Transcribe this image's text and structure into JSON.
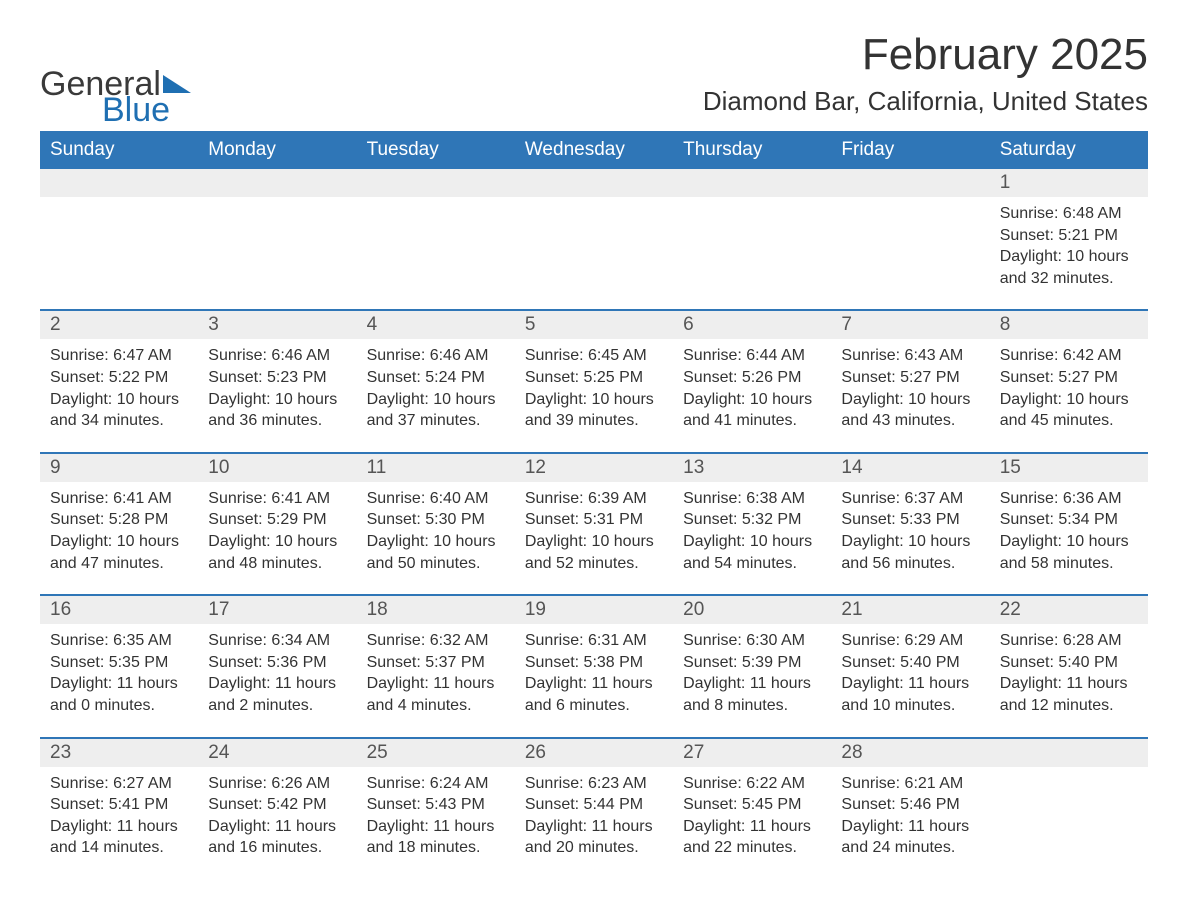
{
  "brand": {
    "word1": "General",
    "word2": "Blue",
    "accent_color": "#1f6fb2"
  },
  "title": "February 2025",
  "location": "Diamond Bar, California, United States",
  "colors": {
    "header_bg": "#2f76b7",
    "header_text": "#ffffff",
    "row_sep": "#2f76b7",
    "daynum_bg": "#eeeeee",
    "body_text": "#333333",
    "page_bg": "#ffffff"
  },
  "typography": {
    "month_title_pt": 44,
    "location_pt": 26,
    "dow_pt": 19,
    "daynum_pt": 19,
    "detail_pt": 16
  },
  "days_of_week": [
    "Sunday",
    "Monday",
    "Tuesday",
    "Wednesday",
    "Thursday",
    "Friday",
    "Saturday"
  ],
  "weeks": [
    [
      null,
      null,
      null,
      null,
      null,
      null,
      {
        "n": "1",
        "sunrise": "Sunrise: 6:48 AM",
        "sunset": "Sunset: 5:21 PM",
        "daylight": "Daylight: 10 hours and 32 minutes."
      }
    ],
    [
      {
        "n": "2",
        "sunrise": "Sunrise: 6:47 AM",
        "sunset": "Sunset: 5:22 PM",
        "daylight": "Daylight: 10 hours and 34 minutes."
      },
      {
        "n": "3",
        "sunrise": "Sunrise: 6:46 AM",
        "sunset": "Sunset: 5:23 PM",
        "daylight": "Daylight: 10 hours and 36 minutes."
      },
      {
        "n": "4",
        "sunrise": "Sunrise: 6:46 AM",
        "sunset": "Sunset: 5:24 PM",
        "daylight": "Daylight: 10 hours and 37 minutes."
      },
      {
        "n": "5",
        "sunrise": "Sunrise: 6:45 AM",
        "sunset": "Sunset: 5:25 PM",
        "daylight": "Daylight: 10 hours and 39 minutes."
      },
      {
        "n": "6",
        "sunrise": "Sunrise: 6:44 AM",
        "sunset": "Sunset: 5:26 PM",
        "daylight": "Daylight: 10 hours and 41 minutes."
      },
      {
        "n": "7",
        "sunrise": "Sunrise: 6:43 AM",
        "sunset": "Sunset: 5:27 PM",
        "daylight": "Daylight: 10 hours and 43 minutes."
      },
      {
        "n": "8",
        "sunrise": "Sunrise: 6:42 AM",
        "sunset": "Sunset: 5:27 PM",
        "daylight": "Daylight: 10 hours and 45 minutes."
      }
    ],
    [
      {
        "n": "9",
        "sunrise": "Sunrise: 6:41 AM",
        "sunset": "Sunset: 5:28 PM",
        "daylight": "Daylight: 10 hours and 47 minutes."
      },
      {
        "n": "10",
        "sunrise": "Sunrise: 6:41 AM",
        "sunset": "Sunset: 5:29 PM",
        "daylight": "Daylight: 10 hours and 48 minutes."
      },
      {
        "n": "11",
        "sunrise": "Sunrise: 6:40 AM",
        "sunset": "Sunset: 5:30 PM",
        "daylight": "Daylight: 10 hours and 50 minutes."
      },
      {
        "n": "12",
        "sunrise": "Sunrise: 6:39 AM",
        "sunset": "Sunset: 5:31 PM",
        "daylight": "Daylight: 10 hours and 52 minutes."
      },
      {
        "n": "13",
        "sunrise": "Sunrise: 6:38 AM",
        "sunset": "Sunset: 5:32 PM",
        "daylight": "Daylight: 10 hours and 54 minutes."
      },
      {
        "n": "14",
        "sunrise": "Sunrise: 6:37 AM",
        "sunset": "Sunset: 5:33 PM",
        "daylight": "Daylight: 10 hours and 56 minutes."
      },
      {
        "n": "15",
        "sunrise": "Sunrise: 6:36 AM",
        "sunset": "Sunset: 5:34 PM",
        "daylight": "Daylight: 10 hours and 58 minutes."
      }
    ],
    [
      {
        "n": "16",
        "sunrise": "Sunrise: 6:35 AM",
        "sunset": "Sunset: 5:35 PM",
        "daylight": "Daylight: 11 hours and 0 minutes."
      },
      {
        "n": "17",
        "sunrise": "Sunrise: 6:34 AM",
        "sunset": "Sunset: 5:36 PM",
        "daylight": "Daylight: 11 hours and 2 minutes."
      },
      {
        "n": "18",
        "sunrise": "Sunrise: 6:32 AM",
        "sunset": "Sunset: 5:37 PM",
        "daylight": "Daylight: 11 hours and 4 minutes."
      },
      {
        "n": "19",
        "sunrise": "Sunrise: 6:31 AM",
        "sunset": "Sunset: 5:38 PM",
        "daylight": "Daylight: 11 hours and 6 minutes."
      },
      {
        "n": "20",
        "sunrise": "Sunrise: 6:30 AM",
        "sunset": "Sunset: 5:39 PM",
        "daylight": "Daylight: 11 hours and 8 minutes."
      },
      {
        "n": "21",
        "sunrise": "Sunrise: 6:29 AM",
        "sunset": "Sunset: 5:40 PM",
        "daylight": "Daylight: 11 hours and 10 minutes."
      },
      {
        "n": "22",
        "sunrise": "Sunrise: 6:28 AM",
        "sunset": "Sunset: 5:40 PM",
        "daylight": "Daylight: 11 hours and 12 minutes."
      }
    ],
    [
      {
        "n": "23",
        "sunrise": "Sunrise: 6:27 AM",
        "sunset": "Sunset: 5:41 PM",
        "daylight": "Daylight: 11 hours and 14 minutes."
      },
      {
        "n": "24",
        "sunrise": "Sunrise: 6:26 AM",
        "sunset": "Sunset: 5:42 PM",
        "daylight": "Daylight: 11 hours and 16 minutes."
      },
      {
        "n": "25",
        "sunrise": "Sunrise: 6:24 AM",
        "sunset": "Sunset: 5:43 PM",
        "daylight": "Daylight: 11 hours and 18 minutes."
      },
      {
        "n": "26",
        "sunrise": "Sunrise: 6:23 AM",
        "sunset": "Sunset: 5:44 PM",
        "daylight": "Daylight: 11 hours and 20 minutes."
      },
      {
        "n": "27",
        "sunrise": "Sunrise: 6:22 AM",
        "sunset": "Sunset: 5:45 PM",
        "daylight": "Daylight: 11 hours and 22 minutes."
      },
      {
        "n": "28",
        "sunrise": "Sunrise: 6:21 AM",
        "sunset": "Sunset: 5:46 PM",
        "daylight": "Daylight: 11 hours and 24 minutes."
      },
      null
    ]
  ]
}
